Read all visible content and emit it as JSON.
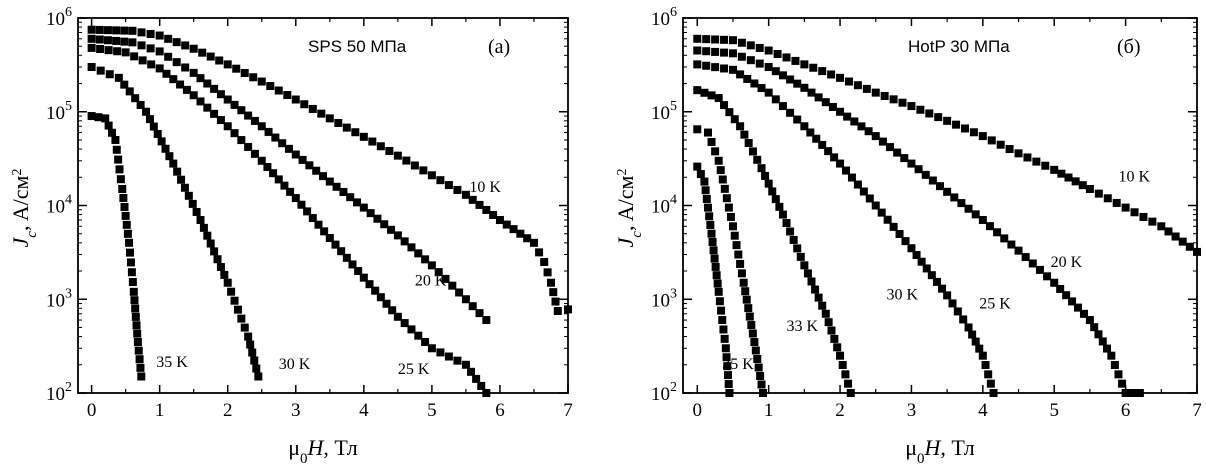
{
  "figure": {
    "chart_data": [
      {
        "type": "scatter",
        "panel": "(a)",
        "title": "SPS 50 МПа",
        "xlabel": "μ0H, Тл",
        "ylabel": "Jc, A/см2",
        "xlim": [
          -0.2,
          7
        ],
        "ylim": [
          100,
          1000000
        ],
        "yscale": "log",
        "xticks": [
          "0",
          "1",
          "2",
          "3",
          "4",
          "5",
          "6",
          "7"
        ],
        "yticks": [
          "10^2",
          "10^3",
          "10^4",
          "10^5",
          "10^6"
        ],
        "series": [
          {
            "name": "10 K",
            "label_at": [
              5.55,
              14000
            ],
            "x": [
              0,
              0.6,
              1.0,
              1.5,
              2.0,
              2.5,
              3.0,
              3.5,
              4.0,
              4.5,
              5.0,
              5.5,
              6.0,
              6.5,
              6.65,
              6.75,
              6.85,
              7.0
            ],
            "y": [
              750000,
              730000,
              650000,
              470000,
              320000,
              210000,
              135000,
              85000,
              54000,
              34000,
              21000,
              13000,
              7000,
              4000,
              2500,
              1500,
              750,
              780
            ]
          },
          {
            "name": "20 K",
            "label_at": [
              4.75,
              1400
            ],
            "x": [
              0,
              0.6,
              1.0,
              1.5,
              2.0,
              2.5,
              3.0,
              3.5,
              4.0,
              4.5,
              5.0,
              5.5,
              5.8
            ],
            "y": [
              600000,
              550000,
              440000,
              260000,
              135000,
              70000,
              35000,
              18000,
              9500,
              4800,
              2300,
              1000,
              600
            ]
          },
          {
            "name": "25 K",
            "label_at": [
              4.5,
              160
            ],
            "x": [
              0,
              0.5,
              1.0,
              1.5,
              2.0,
              2.5,
              3.0,
              3.5,
              4.0,
              4.5,
              5.0,
              5.5,
              5.8
            ],
            "y": [
              480000,
              430000,
              290000,
              150000,
              70000,
              30000,
              12000,
              4500,
              1700,
              650,
              300,
              200,
              100
            ]
          },
          {
            "name": "30 K",
            "label_at": [
              2.75,
              180
            ],
            "x": [
              0,
              0.4,
              0.8,
              1.2,
              1.6,
              2.0,
              2.3,
              2.45
            ],
            "y": [
              300000,
              230000,
              100000,
              28000,
              7000,
              1500,
              400,
              150
            ]
          },
          {
            "name": "35 K",
            "label_at": [
              0.95,
              190
            ],
            "x": [
              0,
              0.2,
              0.35,
              0.45,
              0.55,
              0.62,
              0.68,
              0.73
            ],
            "y": [
              90000,
              85000,
              50000,
              15000,
              4000,
              1200,
              350,
              150
            ]
          }
        ]
      },
      {
        "type": "scatter",
        "panel": "(б)",
        "title": "HotP 30 МПа",
        "xlabel": "μ0H, Тл",
        "ylabel": "Jc, A/см2",
        "xlim": [
          -0.2,
          7
        ],
        "ylim": [
          100,
          1000000
        ],
        "yscale": "log",
        "xticks": [
          "0",
          "1",
          "2",
          "3",
          "4",
          "5",
          "6",
          "7"
        ],
        "yticks": [
          "10^2",
          "10^3",
          "10^4",
          "10^5",
          "10^6"
        ],
        "series": [
          {
            "name": "10 K",
            "label_at": [
              5.9,
              18000
            ],
            "x": [
              0,
              0.5,
              1.0,
              1.5,
              2.0,
              2.5,
              3.0,
              3.5,
              4.0,
              4.5,
              5.0,
              5.5,
              6.0,
              6.5,
              7.0
            ],
            "y": [
              600000,
              580000,
              450000,
              320000,
              230000,
              160000,
              115000,
              80000,
              55000,
              36000,
              24000,
              15000,
              9500,
              6000,
              3200
            ]
          },
          {
            "name": "20 K",
            "label_at": [
              4.95,
              2200
            ],
            "x": [
              0,
              0.5,
              1.0,
              1.5,
              2.0,
              2.5,
              3.0,
              3.5,
              4.0,
              4.5,
              5.0,
              5.5,
              5.8,
              6.0,
              6.2
            ],
            "y": [
              450000,
              420000,
              300000,
              180000,
              100000,
              55000,
              28000,
              14000,
              7000,
              3300,
              1500,
              600,
              250,
              100,
              100
            ]
          },
          {
            "name": "25 K",
            "label_at": [
              3.95,
              800
            ],
            "x": [
              0,
              0.5,
              1.0,
              1.5,
              2.0,
              2.5,
              3.0,
              3.5,
              3.8,
              4.0,
              4.15
            ],
            "y": [
              320000,
              280000,
              160000,
              70000,
              28000,
              10000,
              3500,
              1100,
              500,
              250,
              100
            ]
          },
          {
            "name": "30 K",
            "label_at": [
              2.65,
              1000
            ],
            "x": [
              0,
              0.3,
              0.6,
              0.9,
              1.2,
              1.5,
              1.8,
              2.0,
              2.15
            ],
            "y": [
              170000,
              140000,
              70000,
              25000,
              8000,
              2300,
              700,
              250,
              100
            ]
          },
          {
            "name": "33 K",
            "label_at": [
              1.25,
              460
            ],
            "x": [
              0,
              0.15,
              0.3,
              0.5,
              0.65,
              0.8,
              0.92
            ],
            "y": [
              65000,
              60000,
              30000,
              6000,
              1500,
              350,
              100
            ]
          },
          {
            "name": "35 K",
            "label_at": [
              0.35,
              180
            ],
            "x": [
              0,
              0.1,
              0.2,
              0.3,
              0.4,
              0.45
            ],
            "y": [
              26000,
              18000,
              5000,
              1200,
              300,
              100
            ]
          }
        ]
      }
    ]
  }
}
